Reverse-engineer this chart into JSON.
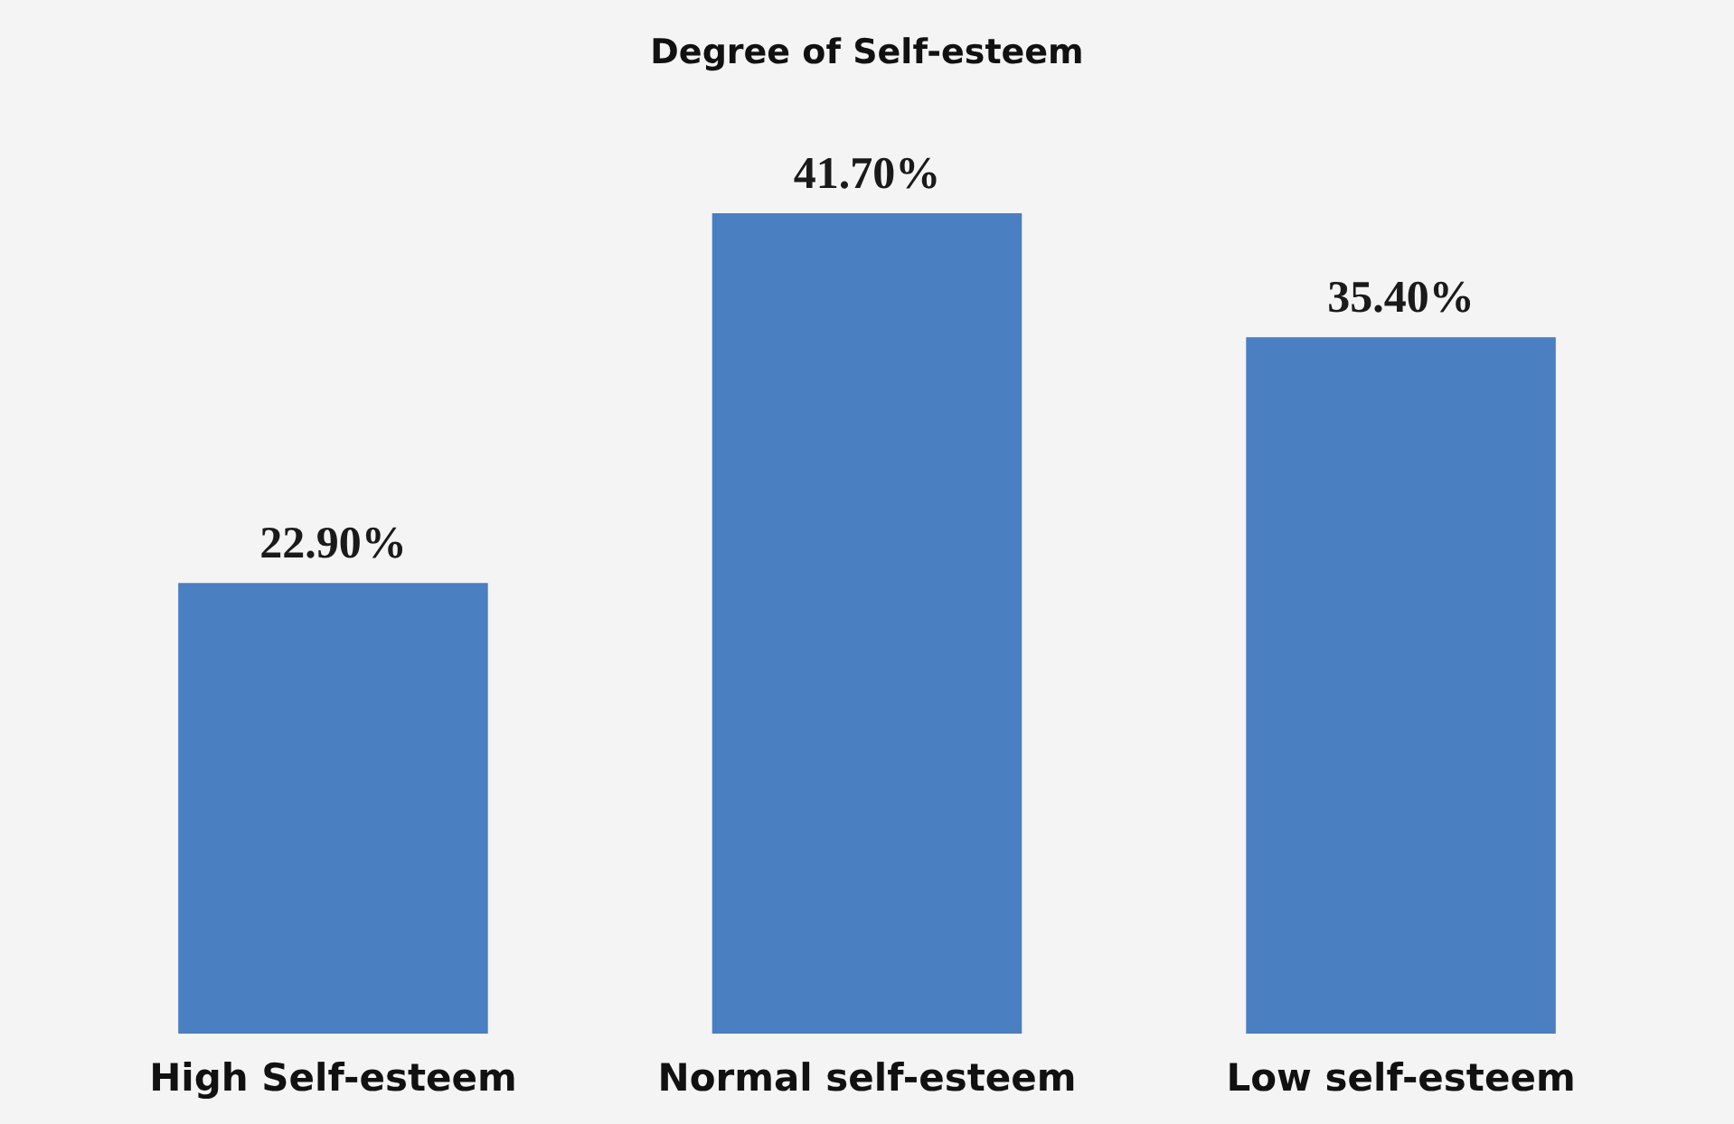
{
  "chart_data": {
    "type": "bar",
    "title": "Degree of Self-esteem",
    "categories": [
      "High Self-esteem",
      "Normal self-esteem",
      "Low self-esteem"
    ],
    "values": [
      22.9,
      41.7,
      35.4
    ],
    "value_labels": [
      "22.90%",
      "41.70%",
      "35.40%"
    ],
    "color": "#4a7fc2"
  }
}
